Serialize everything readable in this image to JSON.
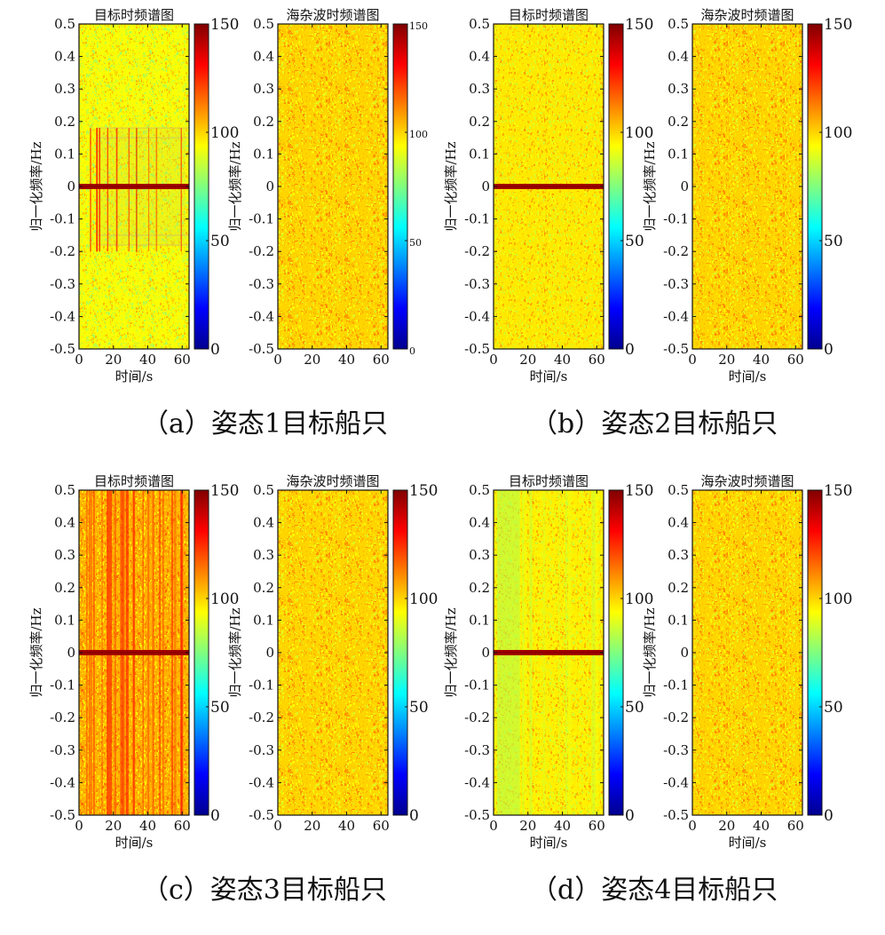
{
  "colors": {
    "colormap": [
      "#00008f",
      "#0000ff",
      "#00ffff",
      "#ffff00",
      "#ff0000",
      "#800000"
    ],
    "background": "#ffffff",
    "spectrogram_base": "#aed64a"
  },
  "panels": [
    {
      "caption": "（a）姿态1目标船只",
      "charts": [
        {
          "title": "目标时频谱图",
          "ylabel": "归一化频率/Hz",
          "xlabel": "时间/s",
          "pattern": "target_a"
        },
        {
          "title": "海杂波时频谱图",
          "ylabel": "归一化频率/Hz",
          "xlabel": "",
          "pattern": "clutter"
        }
      ]
    },
    {
      "caption": "（b）姿态2目标船只",
      "charts": [
        {
          "title": "目标时频谱图",
          "ylabel": "归一化频率/Hz",
          "xlabel": "时间/s",
          "pattern": "target_b"
        },
        {
          "title": "海杂波时频谱图",
          "ylabel": "归一化频率/Hz",
          "xlabel": "时间/s",
          "pattern": "clutter"
        }
      ]
    },
    {
      "caption": "（c）姿态3目标船只",
      "charts": [
        {
          "title": "目标时频谱图",
          "ylabel": "归一化频率/Hz",
          "xlabel": "时间/s",
          "pattern": "target_c"
        },
        {
          "title": "海杂波时频谱图",
          "ylabel": "归一化频率/Hz",
          "xlabel": "",
          "pattern": "clutter"
        }
      ]
    },
    {
      "caption": "（d）姿态4目标船只",
      "charts": [
        {
          "title": "目标时频谱图",
          "ylabel": "归一化频率/Hz",
          "xlabel": "时间/s",
          "pattern": "target_d"
        },
        {
          "title": "海杂波时频谱图",
          "ylabel": "归一化频率/Hz",
          "xlabel": "时间/s",
          "pattern": "clutter"
        }
      ]
    }
  ],
  "chart_data": {
    "type": "heatmap",
    "description_note": "",
    "xlim": [
      0,
      64
    ],
    "ylim": [
      -0.5,
      0.5
    ],
    "xticks": [
      "0",
      "20",
      "40",
      "60"
    ],
    "yticks": [
      "0.5",
      "0.4",
      "0.3",
      "0.2",
      "0.1",
      "0",
      "-0.1",
      "-0.2",
      "-0.3",
      "-0.4",
      "-0.5"
    ],
    "colorbar_range": [
      0,
      150
    ],
    "colorbar_ticks": [
      "150",
      "100",
      "50",
      "0"
    ],
    "target_peak_frequency": 0,
    "target_peak_level": 145,
    "background_level": 95
  }
}
